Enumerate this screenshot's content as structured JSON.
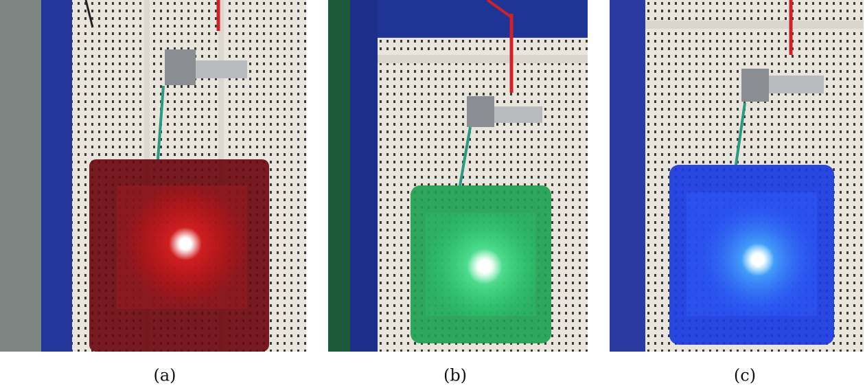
{
  "panels": [
    {
      "caption": "(a)"
    },
    {
      "caption": "(b)"
    },
    {
      "caption": "(c)"
    }
  ]
}
